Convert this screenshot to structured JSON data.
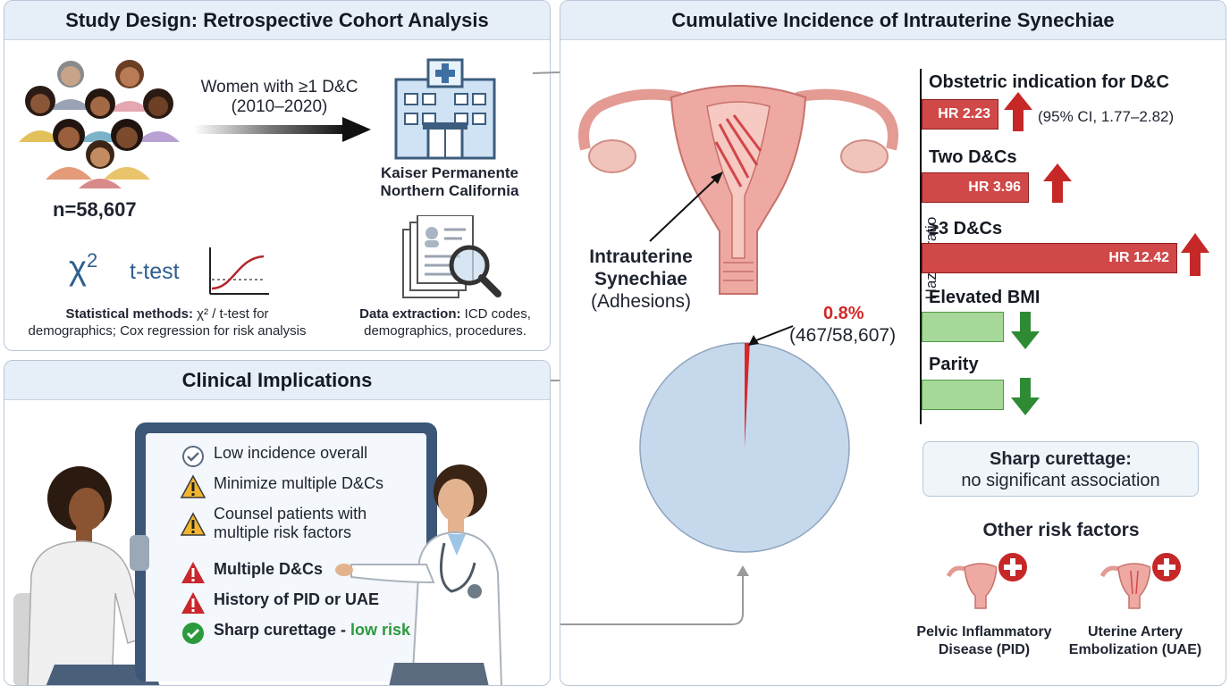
{
  "design": {
    "title": "Study Design: Retrospective Cohort Analysis",
    "cohort_label_line1": "Women with ≥1 D&C",
    "cohort_label_line2": "(2010–2020)",
    "n": "n=58,607",
    "site_line1": "Kaiser Permanente",
    "site_line2": "Northern California",
    "chi_symbol": "χ",
    "chi_exp": "2",
    "ttest": "t-test",
    "stat_bold": "Statistical methods:",
    "stat_rest_line1": " χ² / t-test for",
    "stat_line2": "demographics; Cox regression for risk analysis",
    "extract_bold": "Data extraction:",
    "extract_rest_line1": " ICD codes,",
    "extract_line2": "demographics, procedures."
  },
  "implications": {
    "title": "Clinical Implications",
    "items": [
      {
        "label": "Low incidence overall",
        "icon": "check-circle-icon"
      },
      {
        "label": "Minimize multiple D&Cs",
        "icon": "warning-icon"
      },
      {
        "label_line1": "Counsel patients with",
        "label_line2": "multiple risk factors",
        "icon": "warning-icon"
      },
      {
        "label": "Multiple D&Cs",
        "icon": "alert-icon"
      },
      {
        "label": "History of PID or UAE",
        "icon": "alert-icon"
      },
      {
        "label_main": "Sharp curettage",
        "label_sep": " - ",
        "label_low": "low risk",
        "icon": "green-check-icon"
      }
    ]
  },
  "incidence": {
    "title": "Cumulative Incidence of Intrauterine Synechiae",
    "uterus_label_line1": "Intrauterine",
    "uterus_label_line2": "Synechiae",
    "uterus_label_line3": "(Adhesions)",
    "pct": "0.8%",
    "count": "(467/58,607)",
    "hr_axis": "Hazard ratio",
    "factors": [
      {
        "label": "Obstetric indication for D&C",
        "hr": "HR 2.23",
        "value": 2.23,
        "direction": "up",
        "ci": "(95% CI, 1.77–2.82)"
      },
      {
        "label": "Two D&Cs",
        "hr": "HR 3.96",
        "value": 3.96,
        "direction": "up"
      },
      {
        "label": "≥3 D&Cs",
        "hr": "HR 12.42",
        "value": 12.42,
        "direction": "up"
      },
      {
        "label": "Elevated BMI",
        "direction": "down"
      },
      {
        "label": "Parity",
        "direction": "down"
      }
    ],
    "sharp_line1": "Sharp curettage:",
    "sharp_line2": "no significant association",
    "other_title": "Other risk factors",
    "pid_line1": "Pelvic Inflammatory",
    "pid_line2": "Disease (PID)",
    "uae_line1": "Uterine Artery",
    "uae_line2": "Embolization (UAE)"
  },
  "chart_data": {
    "type": "pie",
    "title": "",
    "categories": [
      "Intrauterine synechiae",
      "No synechiae"
    ],
    "values": [
      467,
      58140
    ],
    "percent_label": "0.8%",
    "colors": {
      "synechiae": "#d62828",
      "none": "#c6d8ec"
    }
  },
  "colors": {
    "accent_red": "#d04848",
    "green": "#a6d89a",
    "header_bg": "#e6eef7",
    "panel_border": "#b8c7d8"
  }
}
